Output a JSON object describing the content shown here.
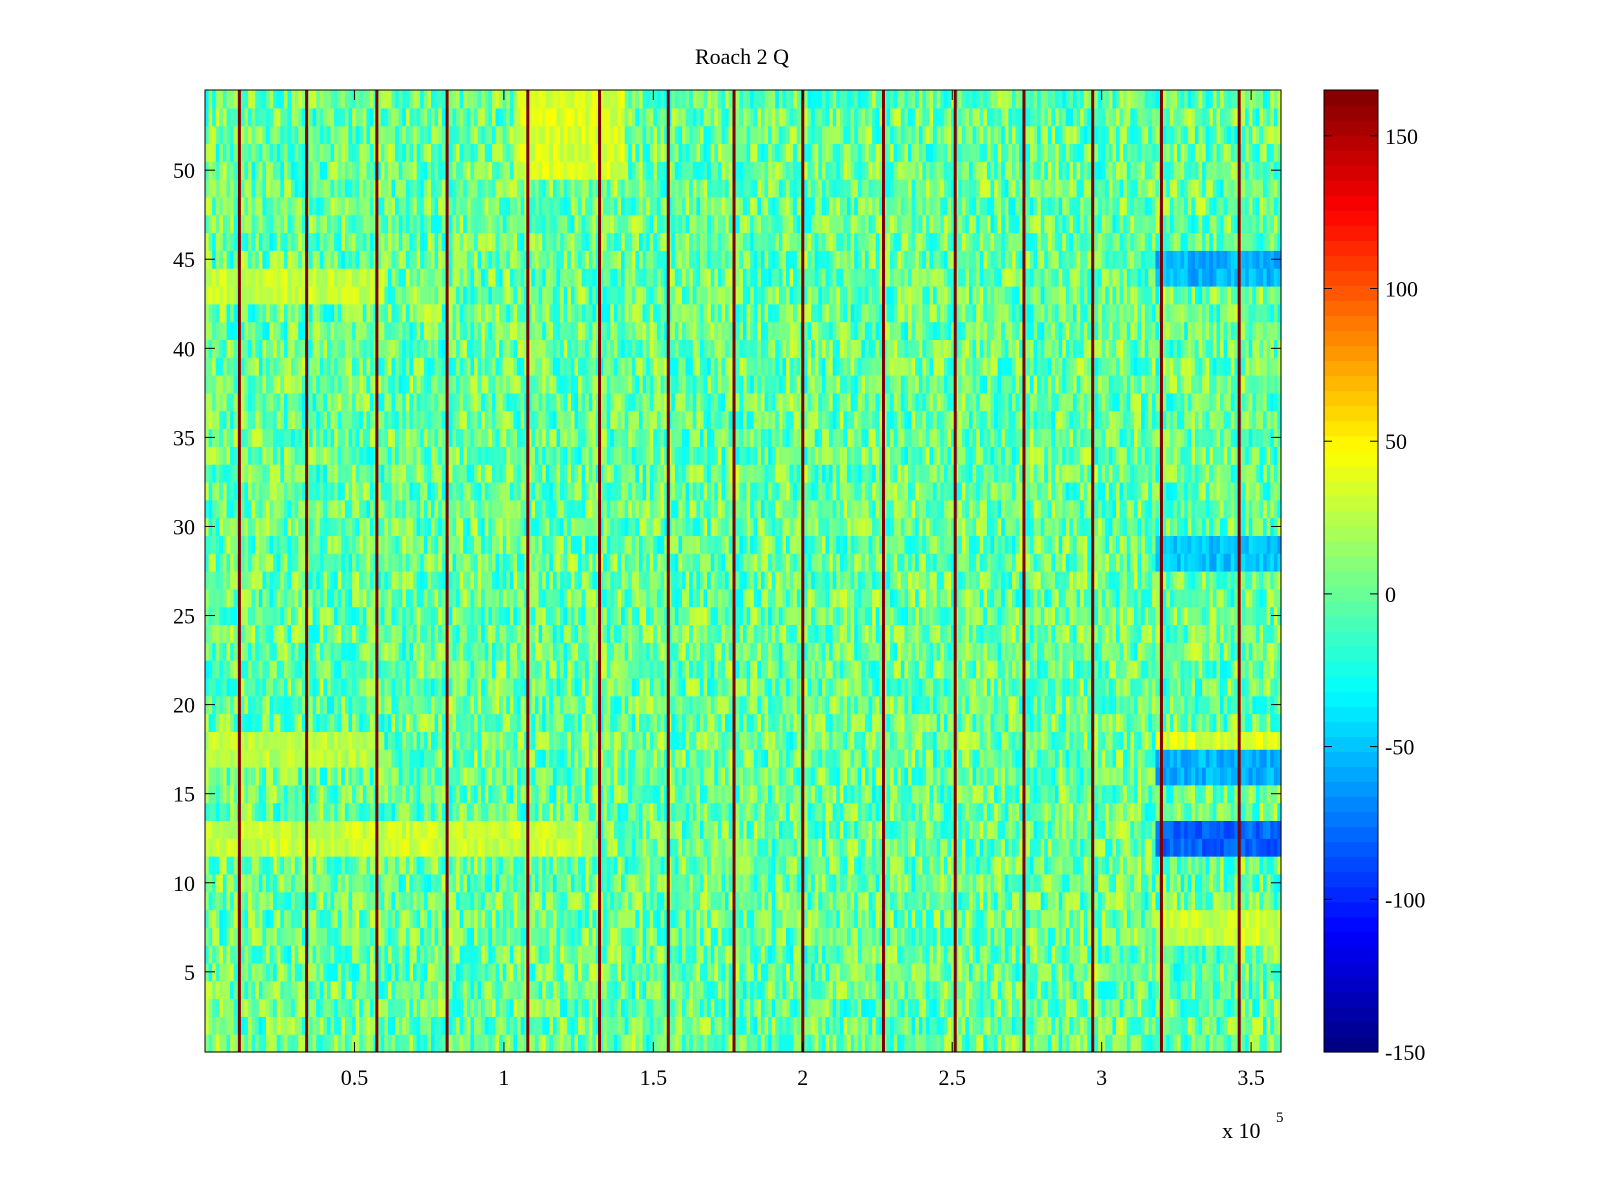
{
  "chart_data": {
    "type": "heatmap",
    "title": "Roach 2 Q",
    "xlabel": "",
    "ylabel": "",
    "x_range": [
      0,
      360000
    ],
    "y_range": [
      0.5,
      54.5
    ],
    "x_ticks": [
      {
        "value": 50000,
        "label": "0.5"
      },
      {
        "value": 100000,
        "label": "1"
      },
      {
        "value": 150000,
        "label": "1.5"
      },
      {
        "value": 200000,
        "label": "2"
      },
      {
        "value": 250000,
        "label": "2.5"
      },
      {
        "value": 300000,
        "label": "3"
      },
      {
        "value": 350000,
        "label": "3.5"
      }
    ],
    "x_exponent": {
      "base": "x 10",
      "power": "5"
    },
    "y_ticks": [
      {
        "value": 5,
        "label": "5"
      },
      {
        "value": 10,
        "label": "10"
      },
      {
        "value": 15,
        "label": "15"
      },
      {
        "value": 20,
        "label": "20"
      },
      {
        "value": 25,
        "label": "25"
      },
      {
        "value": 30,
        "label": "30"
      },
      {
        "value": 35,
        "label": "35"
      },
      {
        "value": 40,
        "label": "40"
      },
      {
        "value": 45,
        "label": "45"
      },
      {
        "value": 50,
        "label": "50"
      }
    ],
    "colorbar": {
      "range": [
        -150,
        165
      ],
      "colormap": "jet",
      "ticks": [
        {
          "value": -150,
          "label": "-150"
        },
        {
          "value": -100,
          "label": "-100"
        },
        {
          "value": -50,
          "label": "-50"
        },
        {
          "value": 0,
          "label": "0"
        },
        {
          "value": 50,
          "label": "50"
        },
        {
          "value": 100,
          "label": "100"
        },
        {
          "value": 150,
          "label": "150"
        }
      ]
    },
    "rows": 54,
    "baseline_value": 0,
    "spike_columns_x": [
      11500,
      34000,
      57500,
      81000,
      108000,
      132000,
      155000,
      177000,
      200000,
      227000,
      251000,
      274000,
      297000,
      320000,
      346000
    ],
    "spike_value": 165,
    "low_regions": [
      {
        "x": [
          318000,
          360000
        ],
        "y": [
          12,
          13
        ],
        "value": -80
      },
      {
        "x": [
          318000,
          360000
        ],
        "y": [
          16,
          17
        ],
        "value": -55
      },
      {
        "x": [
          318000,
          360000
        ],
        "y": [
          28,
          29
        ],
        "value": -50
      },
      {
        "x": [
          318000,
          360000
        ],
        "y": [
          44,
          45
        ],
        "value": -55
      }
    ],
    "high_regions": [
      {
        "x": [
          0,
          130000
        ],
        "y": [
          12,
          13
        ],
        "value": 30
      },
      {
        "x": [
          0,
          60000
        ],
        "y": [
          43,
          44
        ],
        "value": 30
      },
      {
        "x": [
          0,
          60000
        ],
        "y": [
          17,
          18
        ],
        "value": 25
      },
      {
        "x": [
          318000,
          360000
        ],
        "y": [
          18,
          18
        ],
        "value": 35
      },
      {
        "x": [
          318000,
          360000
        ],
        "y": [
          7,
          8
        ],
        "value": 30
      },
      {
        "x": [
          105000,
          140000
        ],
        "y": [
          50,
          54
        ],
        "value": 35
      }
    ]
  }
}
